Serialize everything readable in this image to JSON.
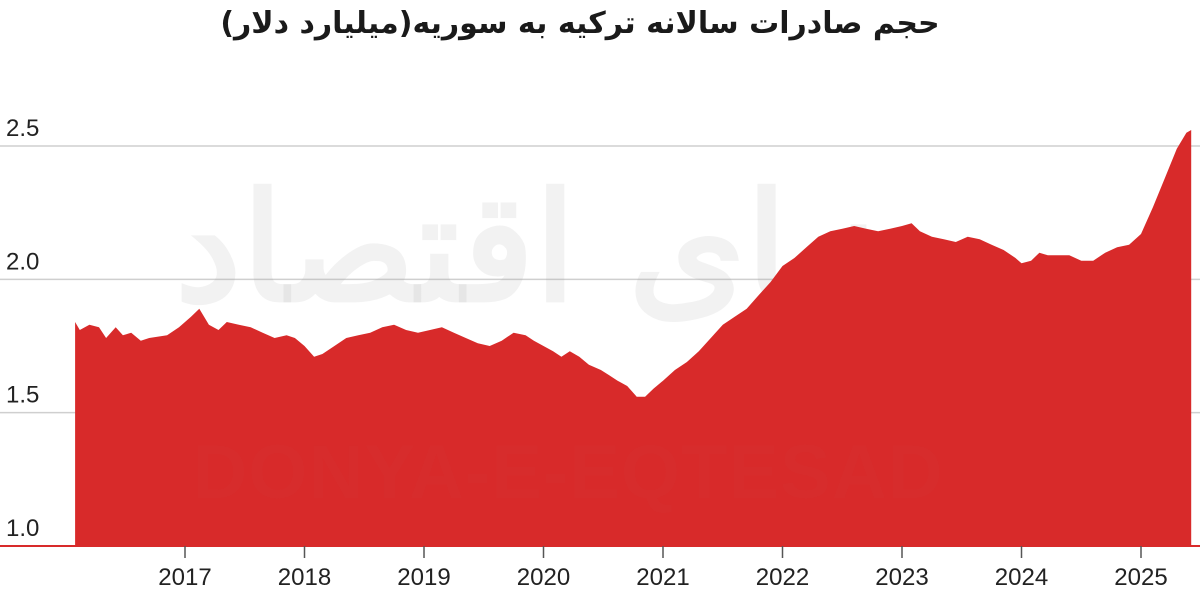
{
  "chart_data": {
    "type": "area",
    "title": "حجم صادرات سالانه ترکیه به سوریه(میلیارد دلار)",
    "xlabel": "",
    "ylabel": "",
    "ylim": [
      1.0,
      2.6
    ],
    "yticks": [
      1.0,
      1.5,
      2.0,
      2.5
    ],
    "ytick_labels": [
      "1.0",
      "1.5",
      "2.0",
      "2.5"
    ],
    "xlim": [
      2016.0,
      2025.45
    ],
    "xticks": [
      2017,
      2018,
      2019,
      2020,
      2021,
      2022,
      2023,
      2024,
      2025
    ],
    "xtick_labels": [
      "2017",
      "2018",
      "2019",
      "2020",
      "2021",
      "2022",
      "2023",
      "2024",
      "2025"
    ],
    "grid": "horizontal",
    "color": "#d82a2a",
    "watermark": "DONYA-E-EQTESAD",
    "watermark_arabic": "دنیای اقتصاد",
    "series": [
      {
        "points": [
          [
            2016.08,
            1.84
          ],
          [
            2016.12,
            1.81
          ],
          [
            2016.2,
            1.83
          ],
          [
            2016.28,
            1.82
          ],
          [
            2016.34,
            1.78
          ],
          [
            2016.42,
            1.82
          ],
          [
            2016.48,
            1.79
          ],
          [
            2016.55,
            1.8
          ],
          [
            2016.63,
            1.77
          ],
          [
            2016.7,
            1.78
          ],
          [
            2016.85,
            1.79
          ],
          [
            2016.95,
            1.82
          ],
          [
            2017.05,
            1.86
          ],
          [
            2017.12,
            1.89
          ],
          [
            2017.2,
            1.83
          ],
          [
            2017.28,
            1.81
          ],
          [
            2017.35,
            1.84
          ],
          [
            2017.45,
            1.83
          ],
          [
            2017.55,
            1.82
          ],
          [
            2017.65,
            1.8
          ],
          [
            2017.75,
            1.78
          ],
          [
            2017.85,
            1.79
          ],
          [
            2017.92,
            1.78
          ],
          [
            2018.0,
            1.75
          ],
          [
            2018.08,
            1.71
          ],
          [
            2018.15,
            1.72
          ],
          [
            2018.25,
            1.75
          ],
          [
            2018.35,
            1.78
          ],
          [
            2018.45,
            1.79
          ],
          [
            2018.55,
            1.8
          ],
          [
            2018.65,
            1.82
          ],
          [
            2018.75,
            1.83
          ],
          [
            2018.85,
            1.81
          ],
          [
            2018.95,
            1.8
          ],
          [
            2019.05,
            1.81
          ],
          [
            2019.15,
            1.82
          ],
          [
            2019.25,
            1.8
          ],
          [
            2019.35,
            1.78
          ],
          [
            2019.45,
            1.76
          ],
          [
            2019.55,
            1.75
          ],
          [
            2019.65,
            1.77
          ],
          [
            2019.75,
            1.8
          ],
          [
            2019.85,
            1.79
          ],
          [
            2019.92,
            1.77
          ],
          [
            2020.0,
            1.75
          ],
          [
            2020.08,
            1.73
          ],
          [
            2020.15,
            1.71
          ],
          [
            2020.22,
            1.73
          ],
          [
            2020.3,
            1.71
          ],
          [
            2020.38,
            1.68
          ],
          [
            2020.48,
            1.66
          ],
          [
            2020.55,
            1.64
          ],
          [
            2020.62,
            1.62
          ],
          [
            2020.7,
            1.6
          ],
          [
            2020.78,
            1.56
          ],
          [
            2020.85,
            1.56
          ],
          [
            2020.92,
            1.59
          ],
          [
            2021.0,
            1.62
          ],
          [
            2021.1,
            1.66
          ],
          [
            2021.2,
            1.69
          ],
          [
            2021.3,
            1.73
          ],
          [
            2021.4,
            1.78
          ],
          [
            2021.5,
            1.83
          ],
          [
            2021.6,
            1.86
          ],
          [
            2021.7,
            1.89
          ],
          [
            2021.8,
            1.94
          ],
          [
            2021.9,
            1.99
          ],
          [
            2022.0,
            2.05
          ],
          [
            2022.1,
            2.08
          ],
          [
            2022.2,
            2.12
          ],
          [
            2022.3,
            2.16
          ],
          [
            2022.4,
            2.18
          ],
          [
            2022.5,
            2.19
          ],
          [
            2022.6,
            2.2
          ],
          [
            2022.7,
            2.19
          ],
          [
            2022.8,
            2.18
          ],
          [
            2022.9,
            2.19
          ],
          [
            2023.0,
            2.2
          ],
          [
            2023.08,
            2.21
          ],
          [
            2023.15,
            2.18
          ],
          [
            2023.25,
            2.16
          ],
          [
            2023.35,
            2.15
          ],
          [
            2023.45,
            2.14
          ],
          [
            2023.55,
            2.16
          ],
          [
            2023.65,
            2.15
          ],
          [
            2023.75,
            2.13
          ],
          [
            2023.85,
            2.11
          ],
          [
            2023.95,
            2.08
          ],
          [
            2024.0,
            2.06
          ],
          [
            2024.08,
            2.07
          ],
          [
            2024.15,
            2.1
          ],
          [
            2024.22,
            2.09
          ],
          [
            2024.3,
            2.09
          ],
          [
            2024.4,
            2.09
          ],
          [
            2024.5,
            2.07
          ],
          [
            2024.6,
            2.07
          ],
          [
            2024.7,
            2.1
          ],
          [
            2024.8,
            2.12
          ],
          [
            2024.9,
            2.13
          ],
          [
            2025.0,
            2.17
          ],
          [
            2025.1,
            2.27
          ],
          [
            2025.2,
            2.38
          ],
          [
            2025.3,
            2.49
          ],
          [
            2025.38,
            2.55
          ],
          [
            2025.42,
            2.56
          ]
        ]
      }
    ]
  }
}
